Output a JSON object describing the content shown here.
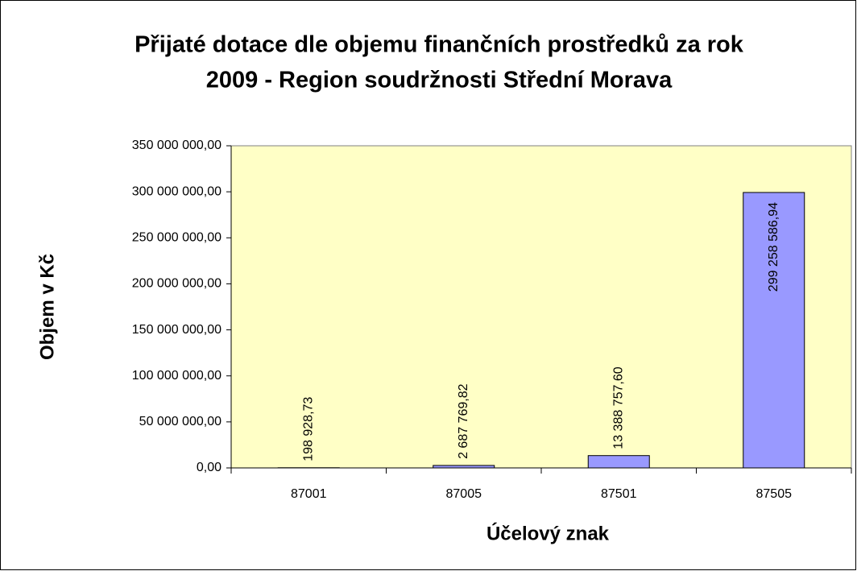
{
  "chart_data": {
    "type": "bar",
    "title": [
      "Přijaté dotace dle objemu finančních prostředků za rok",
      "2009 - Region soudržnosti Střední Morava"
    ],
    "x_label": "Účelový znak",
    "y_label": "Objem v Kč",
    "categories": [
      "87001",
      "87005",
      "87501",
      "87505"
    ],
    "values": [
      198928.73,
      2687769.82,
      13388757.6,
      299258586.94
    ],
    "value_labels": [
      "198 928,73",
      "2 687 769,82",
      "13 388 757,60",
      "299 258 586,94"
    ],
    "color": "#9999ff",
    "ylim": [
      0,
      350000000
    ],
    "yticks": [
      {
        "value": 0,
        "label": "0,00"
      },
      {
        "value": 50000000,
        "label": "50 000 000,00"
      },
      {
        "value": 100000000,
        "label": "100 000 000,00"
      },
      {
        "value": 150000000,
        "label": "150 000 000,00"
      },
      {
        "value": 200000000,
        "label": "200 000 000,00"
      },
      {
        "value": 250000000,
        "label": "250 000 000,00"
      },
      {
        "value": 300000000,
        "label": "300 000 000,00"
      },
      {
        "value": 350000000,
        "label": "350 000 000,00"
      }
    ],
    "grid": false
  }
}
